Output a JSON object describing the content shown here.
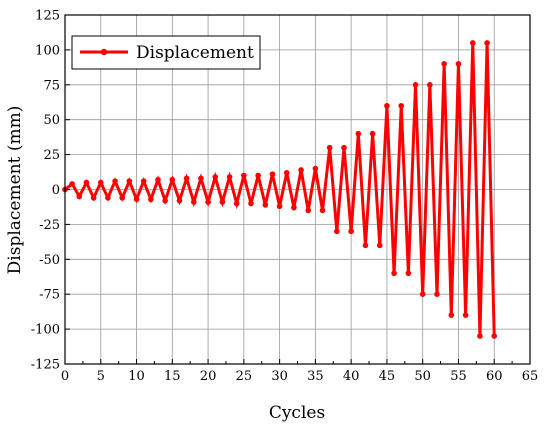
{
  "chart_data": {
    "type": "line",
    "xlabel": "Cycles",
    "ylabel": "Displacement (mm)",
    "xlim": [
      0,
      65
    ],
    "ylim": [
      -125,
      125
    ],
    "xticks": [
      0,
      5,
      10,
      15,
      20,
      25,
      30,
      35,
      40,
      45,
      50,
      55,
      60,
      65
    ],
    "yticks": [
      125,
      100,
      75,
      50,
      25,
      0,
      -25,
      -50,
      -75,
      -100,
      -125
    ],
    "grid": true,
    "legend_position": "top-left",
    "series": [
      {
        "name": "Displacement",
        "color": "#ff0000",
        "marker": "circle",
        "x": [
          0,
          1,
          2,
          3,
          4,
          5,
          6,
          7,
          8,
          9,
          10,
          11,
          12,
          13,
          14,
          15,
          16,
          17,
          18,
          19,
          20,
          21,
          22,
          23,
          24,
          25,
          26,
          27,
          28,
          29,
          30,
          31,
          32,
          33,
          34,
          35,
          36,
          37,
          38,
          39,
          40,
          41,
          42,
          43,
          44,
          45,
          46,
          47,
          48,
          49,
          50,
          51,
          52,
          53,
          54,
          55,
          56,
          57,
          58,
          59,
          60
        ],
        "y": [
          0,
          4,
          -5,
          5,
          -6,
          5,
          -6,
          6,
          -6,
          6,
          -7,
          6,
          -7,
          7,
          -8,
          7,
          -8,
          8,
          -9,
          8,
          -9,
          9,
          -9,
          9,
          -10,
          10,
          -10,
          10,
          -11,
          11,
          -12,
          12,
          -13,
          14,
          -15,
          15,
          -15,
          30,
          -30,
          30,
          -30,
          40,
          -40,
          40,
          -40,
          60,
          -60,
          60,
          -60,
          75,
          -75,
          75,
          -75,
          90,
          -90,
          90,
          -90,
          105,
          -105,
          105,
          -105
        ]
      }
    ]
  }
}
